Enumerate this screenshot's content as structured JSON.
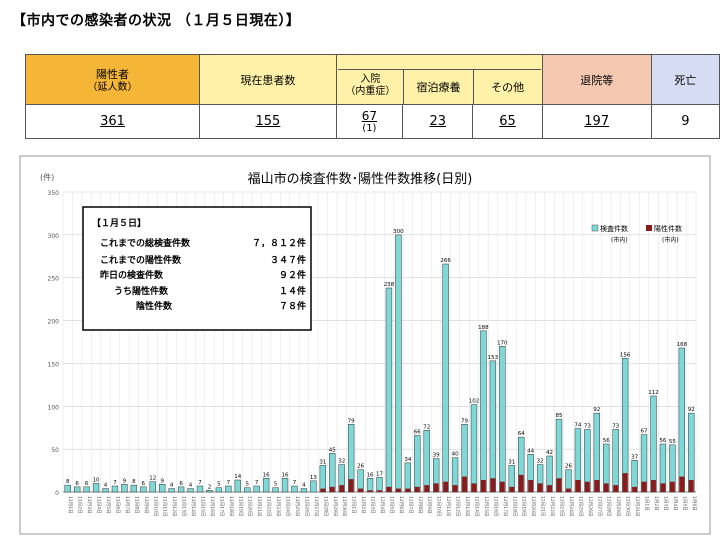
{
  "heading": "【市内での感染者の状況 （１月５日現在）】",
  "stats": {
    "headers": {
      "positive": "陽性者",
      "positive_sub": "（延人数）",
      "current": "現在患者数",
      "hospital": "入院",
      "hospital_sub": "（内重症）",
      "hotel": "宿泊療養",
      "other": "その他",
      "discharged": "退院等",
      "deaths": "死亡"
    },
    "values": {
      "positive": "361",
      "current": "155",
      "hospital": "67",
      "hospital_severe": "(1)",
      "hotel": "23",
      "other": "65",
      "discharged": "197",
      "deaths": "9"
    },
    "colors": {
      "orange": "#f5b536",
      "yellow": "#fff2a8",
      "peach": "#f4c7b0",
      "lavender": "#d6dcf2"
    }
  },
  "chart_data": {
    "type": "bar",
    "title": "福山市の検査件数･陽性件数推移(日別)",
    "ylabel": "(件)",
    "ylim": [
      0,
      350
    ],
    "yticks": [
      "0",
      "50",
      "100",
      "150",
      "200",
      "250",
      "300",
      "350"
    ],
    "grid": true,
    "legend": "top-right",
    "series": [
      {
        "name": "検査件数",
        "name_sub": "(市内)",
        "color": "#7fd8d8",
        "values": [
          8,
          6,
          6,
          10,
          4,
          7,
          9,
          8,
          6,
          12,
          9,
          4,
          6,
          4,
          7,
          2,
          5,
          7,
          14,
          5,
          7,
          16,
          5,
          16,
          7,
          4,
          13,
          31,
          45,
          32,
          79,
          26,
          16,
          17,
          238,
          300,
          34,
          66,
          72,
          39,
          266,
          40,
          79,
          102,
          188,
          153,
          170,
          31,
          64,
          44,
          32,
          42,
          85,
          26,
          74,
          73,
          92,
          56,
          73,
          156,
          37,
          67,
          112,
          56,
          55,
          168,
          92
        ]
      },
      {
        "name": "陽性件数",
        "name_sub": "(市内)",
        "color": "#8b1a1a",
        "values": [
          0,
          0,
          0,
          0,
          0,
          0,
          0,
          0,
          0,
          0,
          0,
          0,
          0,
          0,
          0,
          0,
          0,
          0,
          0,
          0,
          0,
          0,
          0,
          0,
          0,
          0,
          0,
          4,
          6,
          8,
          15,
          4,
          2,
          2,
          6,
          4,
          4,
          6,
          8,
          10,
          12,
          8,
          18,
          10,
          14,
          16,
          12,
          6,
          20,
          14,
          10,
          8,
          16,
          4,
          14,
          12,
          14,
          10,
          8,
          22,
          6,
          12,
          14,
          10,
          12,
          18,
          14
        ]
      }
    ],
    "bar_labels": [
      "8",
      "6",
      "6",
      "10",
      "4",
      "7",
      "9",
      "8",
      "6",
      "12",
      "9",
      "4",
      "6",
      "4",
      "7",
      "2",
      "5",
      "7",
      "14",
      "5",
      "7",
      "16",
      "5",
      "16",
      "7",
      "4",
      "13",
      "31",
      "45",
      "32",
      "79",
      "26",
      "16",
      "17",
      "238",
      "300",
      "34",
      "66",
      "72",
      "39",
      "266",
      "40",
      "79",
      "102",
      "188",
      "153",
      "170",
      "31",
      "64",
      "44",
      "32",
      "42",
      "85",
      "26",
      "74",
      "73",
      "92",
      "56",
      "73",
      "156",
      "37",
      "67",
      "112",
      "56",
      "55",
      "168",
      "92"
    ],
    "categories": [
      "11月1日",
      "11月2日",
      "11月3日",
      "11月4日",
      "11月5日",
      "11月6日",
      "11月7日",
      "11月8日",
      "11月9日",
      "11月10日",
      "11月11日",
      "11月12日",
      "11月13日",
      "11月14日",
      "11月15日",
      "11月16日",
      "11月17日",
      "11月18日",
      "11月19日",
      "11月20日",
      "11月21日",
      "11月22日",
      "11月23日",
      "11月24日",
      "11月25日",
      "11月26日",
      "11月27日",
      "11月28日",
      "11月29日",
      "11月30日",
      "12月1日",
      "12月2日",
      "12月3日",
      "12月4日",
      "12月5日",
      "12月6日",
      "12月7日",
      "12月8日",
      "12月9日",
      "12月10日",
      "12月11日",
      "12月12日",
      "12月13日",
      "12月14日",
      "12月15日",
      "12月16日",
      "12月17日",
      "12月18日",
      "12月19日",
      "12月20日",
      "12月21日",
      "12月22日",
      "12月23日",
      "12月24日",
      "12月25日",
      "12月26日",
      "12月27日",
      "12月28日",
      "12月29日",
      "12月30日",
      "12月31日",
      "1月1日",
      "1月2日",
      "1月3日",
      "1月4日",
      "1月5日",
      "1月6日"
    ],
    "annotation": {
      "title": "【１月５日】",
      "lines": [
        {
          "label": "これまでの総検査件数",
          "value": "７，８１２件"
        },
        {
          "label": "これまでの陽性件数",
          "value": "３４７件"
        },
        {
          "label": "昨日の検査件数",
          "value": "９２件"
        },
        {
          "label": "うち陽性件数",
          "value": "１４件"
        },
        {
          "label": "陰性件数",
          "value": "７８件"
        }
      ]
    }
  }
}
